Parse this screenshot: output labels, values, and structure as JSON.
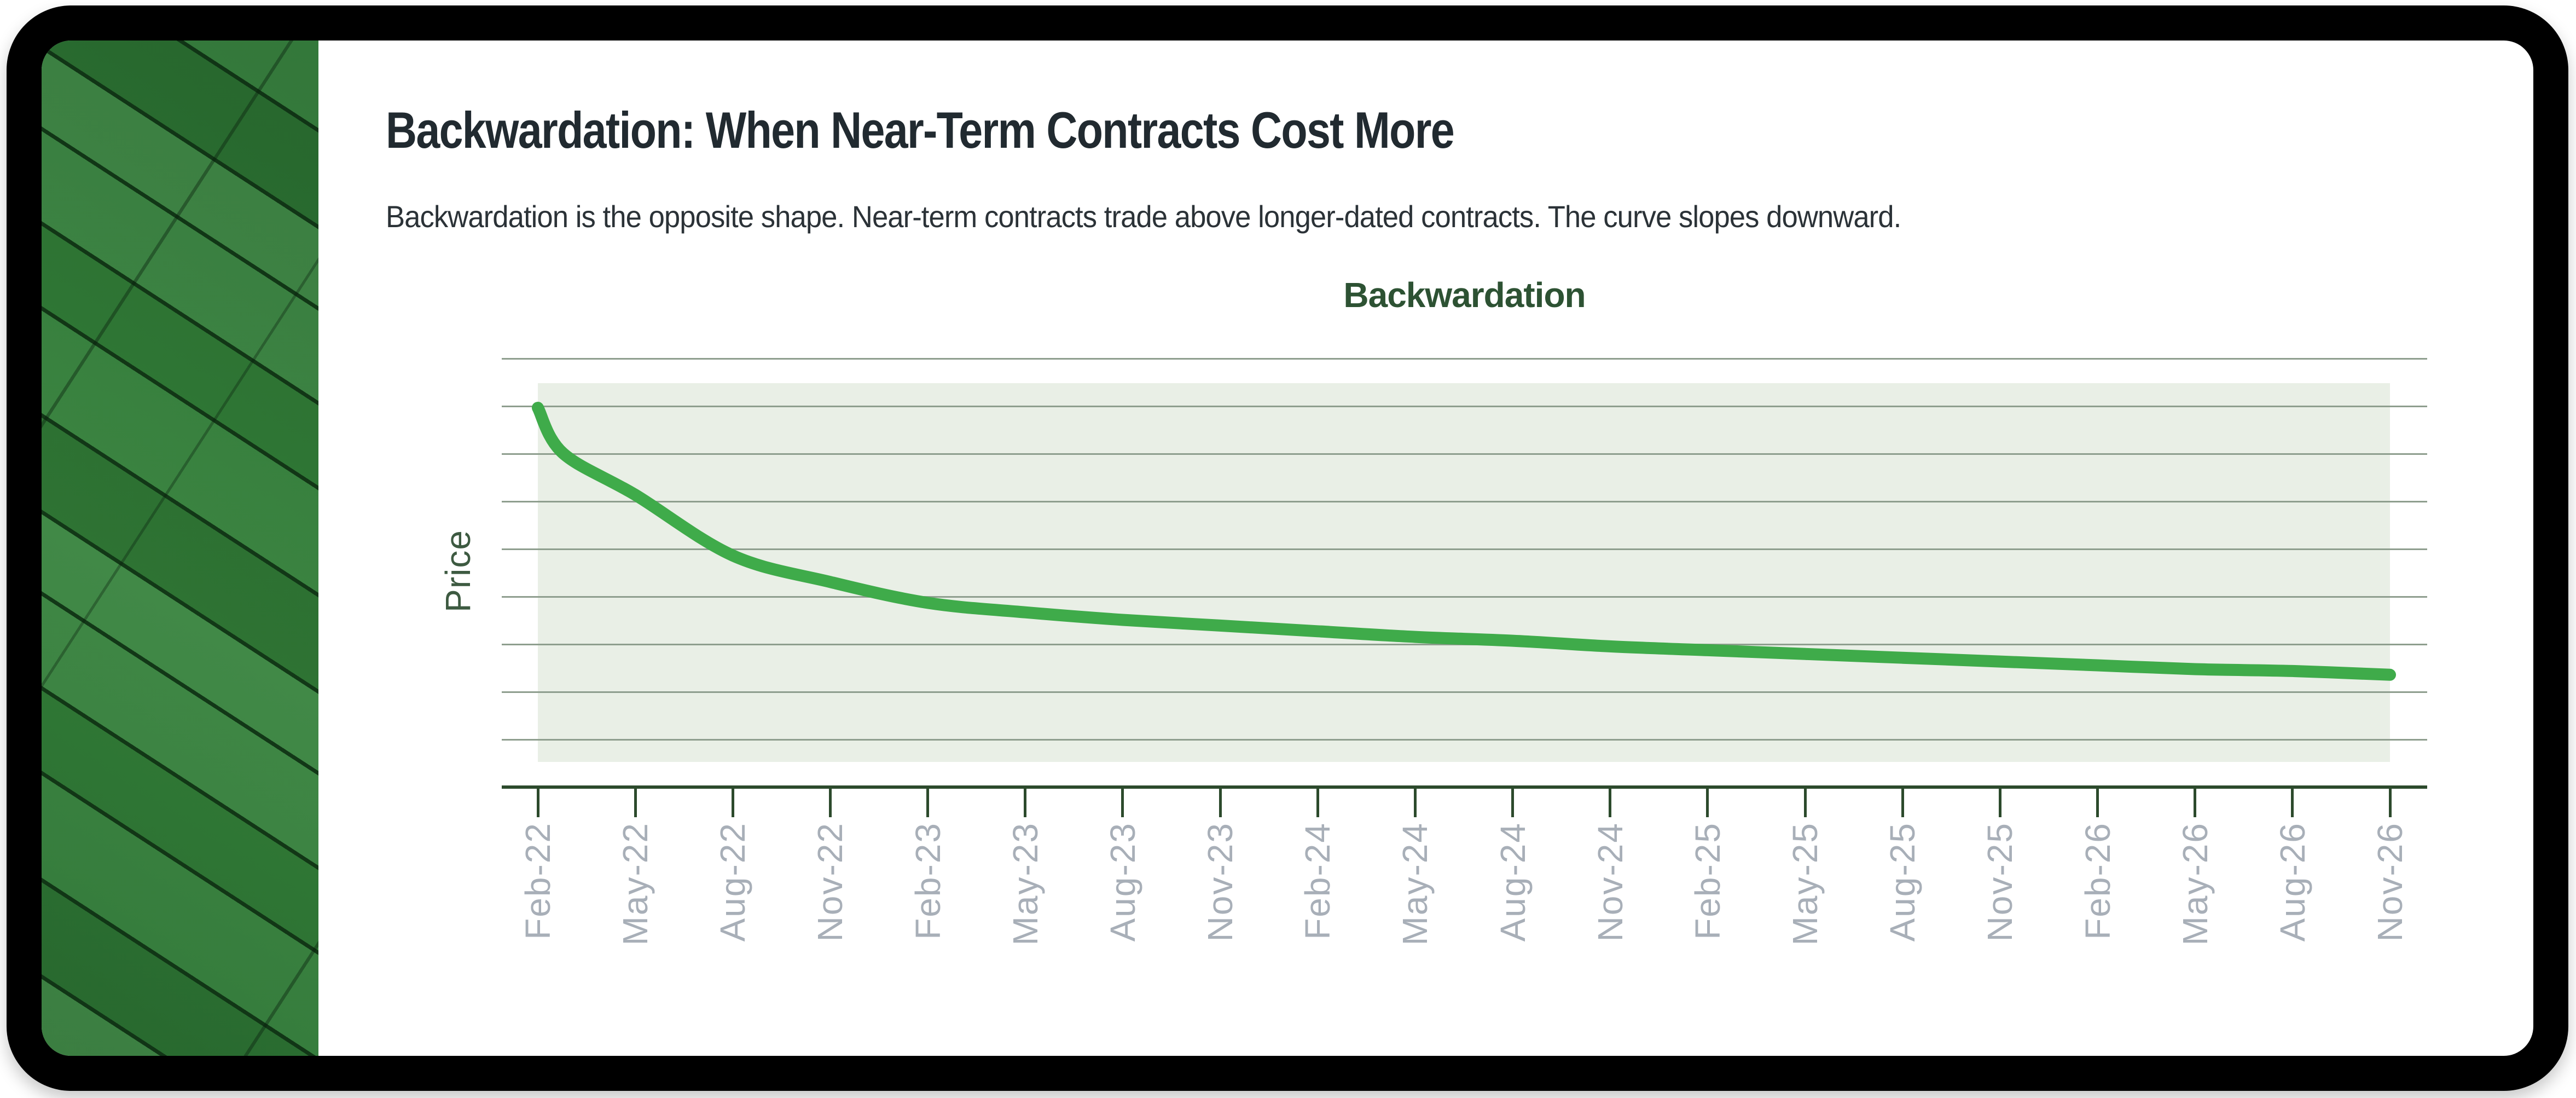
{
  "header": {
    "title": "Backwardation: When Near-Term Contracts Cost More",
    "subtitle": "Backwardation is the opposite shape. Near-term contracts trade above longer-dated contracts. The curve slopes downward."
  },
  "chart_data": {
    "type": "line",
    "title": "Backwardation",
    "xlabel": "",
    "ylabel": "Price",
    "categories": [
      "Feb-22",
      "May-22",
      "Aug-22",
      "Nov-22",
      "Feb-23",
      "May-23",
      "Aug-23",
      "Nov-23",
      "Feb-24",
      "May-24",
      "Aug-24",
      "Nov-24",
      "Feb-25",
      "May-25",
      "Aug-25",
      "Nov-25",
      "Feb-26",
      "May-26",
      "Aug-26",
      "Nov-26"
    ],
    "series": [
      {
        "name": "Price",
        "values": [
          93.5,
          70.5,
          54.5,
          47.5,
          42,
          39.5,
          37.5,
          36,
          34.5,
          33,
          32,
          30.5,
          29.5,
          28.5,
          27.5,
          26.5,
          25.5,
          24.5,
          24,
          23
        ]
      }
    ],
    "ylim": [
      0,
      100
    ],
    "y_tick_labels": "none",
    "grid": "horizontal",
    "gridline_count": 9,
    "legend_position": "none",
    "line_style": "smooth",
    "x_tick_label_rotation": 90
  },
  "colors": {
    "frame_black": "#000000",
    "sidebar_green": "#2F7B36",
    "title_dark": "#212A30",
    "subtitle_dark": "#2B3237",
    "chart_title_green": "#2D5233",
    "ylabel_green": "#3D5A41",
    "line_green": "#3FAB4A",
    "plot_band_green": "#E9EFE6",
    "gridline_gray_green": "#8E9E8E",
    "axis_dark_green": "#2C4A2C",
    "tick_label_gray": "#A8AFB8"
  }
}
